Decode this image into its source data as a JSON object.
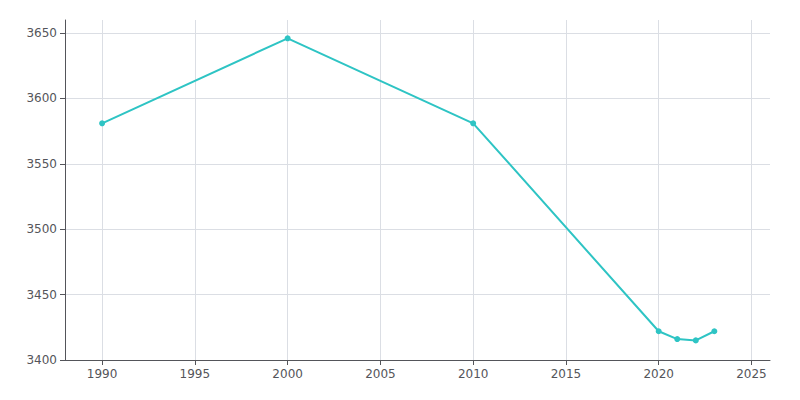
{
  "chart_data": {
    "type": "line",
    "x": [
      1990,
      2000,
      2010,
      2020,
      2021,
      2022,
      2023
    ],
    "values": [
      3581,
      3646,
      3581,
      3422,
      3416,
      3415,
      3422
    ],
    "color": "#2ec4c4",
    "marker": "circle",
    "xlim": [
      1988,
      2026
    ],
    "ylim": [
      3400,
      3660
    ],
    "xticks": [
      1990,
      1995,
      2000,
      2005,
      2010,
      2015,
      2020,
      2025
    ],
    "yticks": [
      3400,
      3450,
      3500,
      3550,
      3600,
      3650
    ],
    "grid": true
  }
}
